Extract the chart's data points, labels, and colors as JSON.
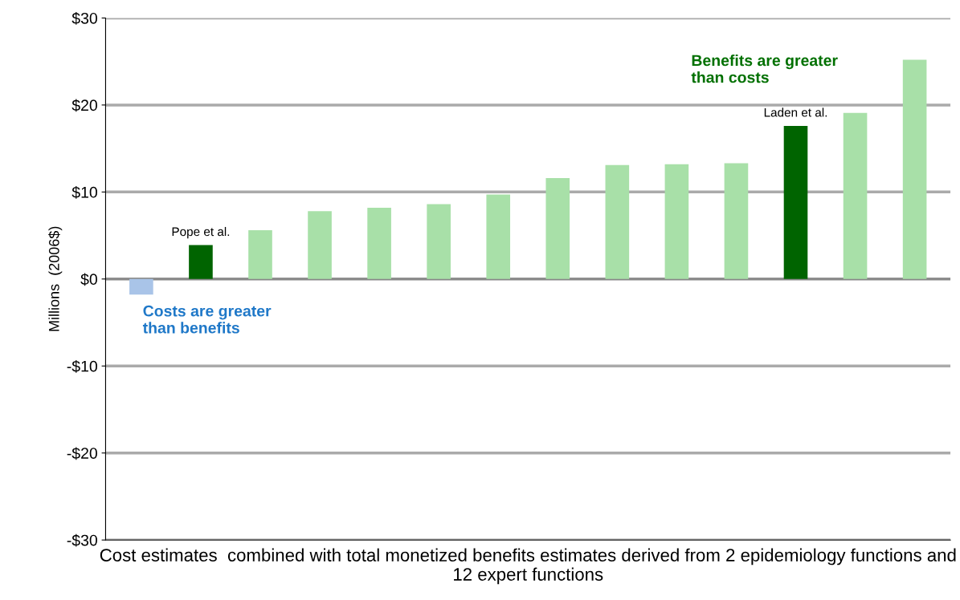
{
  "chart_data": {
    "type": "bar",
    "xlabel": "Cost estimates  combined with total monetized benefits estimates derived from 2 epidemiology functions and 12 expert functions",
    "ylabel": "Millions  (2006$)",
    "categories": [
      null,
      null,
      null,
      null,
      null,
      null,
      null,
      null,
      null,
      null,
      null,
      null,
      null,
      null
    ],
    "values": [
      -1.8,
      3.9,
      5.6,
      7.8,
      8.2,
      8.6,
      9.7,
      11.6,
      13.1,
      13.2,
      13.3,
      17.6,
      19.1,
      25.2
    ],
    "colors": [
      "#a9c4e8",
      "#006400",
      "#a8e0a8",
      "#a8e0a8",
      "#a8e0a8",
      "#a8e0a8",
      "#a8e0a8",
      "#a8e0a8",
      "#a8e0a8",
      "#a8e0a8",
      "#a8e0a8",
      "#006400",
      "#a8e0a8",
      "#a8e0a8"
    ],
    "ylim": [
      -30,
      30
    ],
    "yticks": [
      {
        "value": -30,
        "label": "-$30"
      },
      {
        "value": -20,
        "label": "-$20"
      },
      {
        "value": -10,
        "label": "-$10"
      },
      {
        "value": 0,
        "label": "$0"
      },
      {
        "value": 10,
        "label": "$10"
      },
      {
        "value": 20,
        "label": "$20"
      },
      {
        "value": 30,
        "label": "$30"
      }
    ],
    "grid": "y",
    "annotations": [
      {
        "text": "Pope et al.",
        "y": 3.9
      },
      {
        "text": "Laden et al.",
        "y": 17.6
      },
      "Benefits are greater\nthan costs",
      "Costs are greater\nthan benefits"
    ]
  }
}
